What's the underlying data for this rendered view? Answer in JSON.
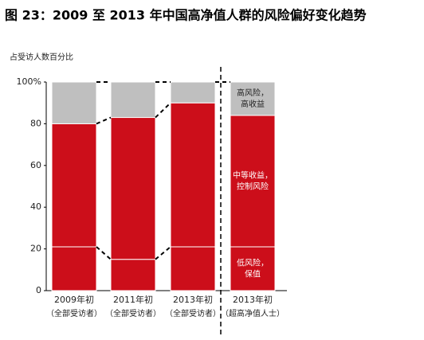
{
  "chart_data": {
    "type": "stacked_bar",
    "title": "图 23：2009 至 2013 年中国高净值人群的风险偏好变化趋势",
    "y_label": "占受访人数百分比",
    "categories": [
      "2009年初",
      "2011年初",
      "2013年初",
      "2013年初"
    ],
    "category_subtitles": [
      "（全部受访者）",
      "（全部受访者）",
      "（全部受访者）",
      "（超高净值人士）"
    ],
    "series": [
      {
        "name": [
          "低风险，",
          "保值"
        ],
        "color": "#cc0e1a",
        "values": [
          21,
          15,
          21,
          21
        ]
      },
      {
        "name": [
          "中等收益，",
          "控制风险"
        ],
        "color": "#cc0e1a",
        "values": [
          59,
          68,
          69,
          63
        ]
      },
      {
        "name": [
          "高风险，",
          "高收益"
        ],
        "color": "#bfbfbf",
        "values": [
          20,
          17,
          10,
          16
        ]
      }
    ],
    "ylim": [
      0,
      100
    ],
    "yticks": [
      0,
      20,
      40,
      60,
      80,
      {
        "value": 100,
        "label": "100%"
      }
    ]
  }
}
